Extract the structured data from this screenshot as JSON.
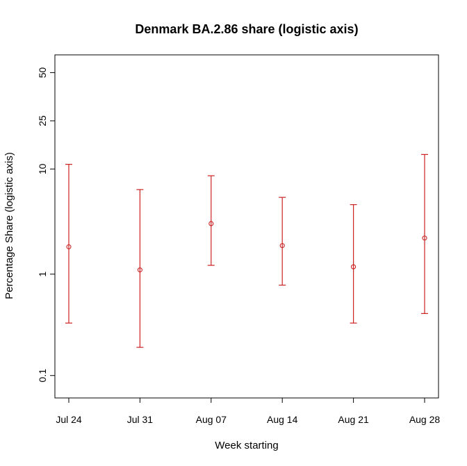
{
  "chart_data": {
    "type": "scatter",
    "title": "Denmark BA.2.86 share (logistic axis)",
    "xlabel": "Week starting",
    "ylabel": "Percentage Share (logistic axis)",
    "y_scale": "logit",
    "grid": false,
    "categories": [
      "Jul 24",
      "Jul 31",
      "Aug 07",
      "Aug 14",
      "Aug 21",
      "Aug 28"
    ],
    "y_ticks": [
      0.1,
      1,
      10,
      25,
      50
    ],
    "y_tick_labels": [
      "0.1",
      "1",
      "10",
      "25",
      "50"
    ],
    "ylim": [
      0.06,
      60
    ],
    "color": "#cc2222",
    "series": [
      {
        "estimate": [
          1.85,
          1.1,
          3.1,
          1.9,
          1.18,
          2.25
        ],
        "lower": [
          0.33,
          0.19,
          1.22,
          0.78,
          0.33,
          0.41
        ],
        "upper": [
          11.0,
          6.5,
          8.7,
          5.5,
          4.7,
          13.4
        ]
      }
    ]
  }
}
